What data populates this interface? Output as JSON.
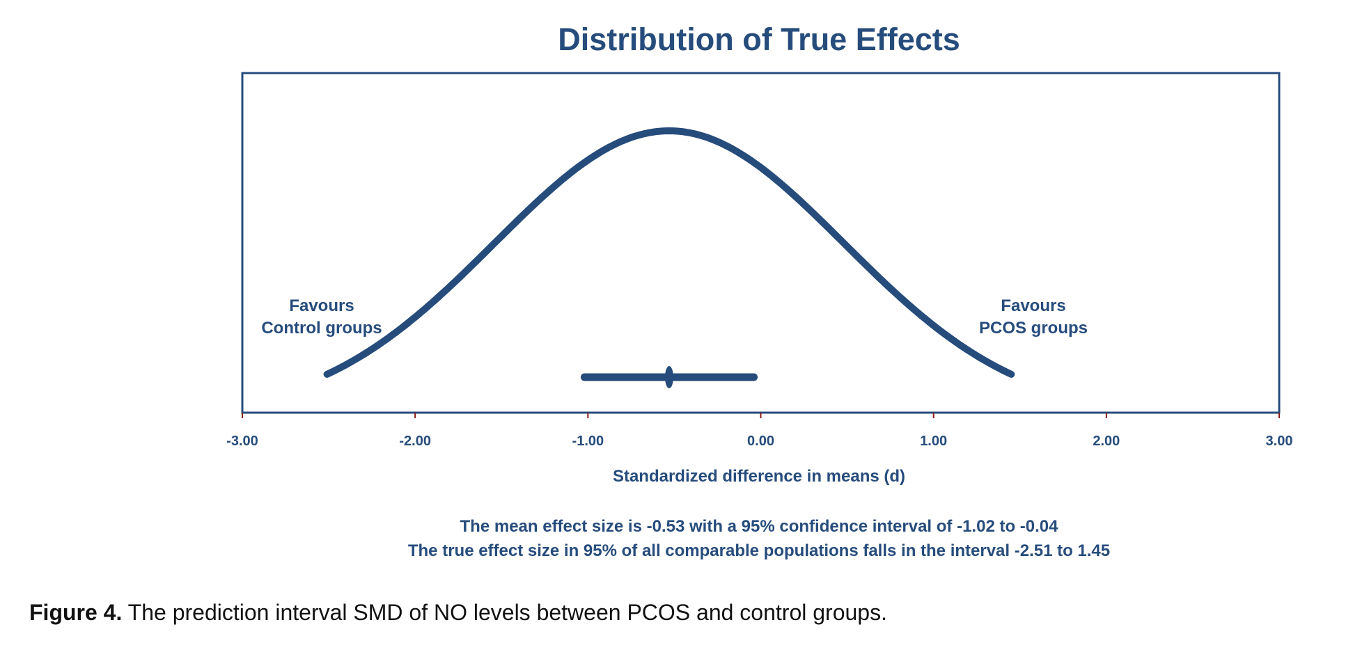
{
  "chart_data": {
    "type": "line",
    "title": "Distribution of True Effects",
    "xlabel": "Standardized difference in means (d)",
    "ylabel": "",
    "xlim": [
      -3.0,
      3.0
    ],
    "x_ticks": [
      "-3.00",
      "-2.00",
      "-1.00",
      "0.00",
      "1.00",
      "2.00",
      "3.00"
    ],
    "x_tick_values": [
      -3,
      -2,
      -1,
      0,
      1,
      2,
      3
    ],
    "grid": false,
    "distribution": {
      "mean": -0.53,
      "pi_lower": -2.51,
      "pi_upper": 1.45
    },
    "confidence_interval": {
      "point": -0.53,
      "lower": -1.02,
      "upper": -0.04
    },
    "annotations": {
      "left": [
        "Favours",
        "Control groups"
      ],
      "right": [
        "Favours",
        "PCOS groups"
      ]
    },
    "footnotes": [
      "The mean effect size is -0.53 with a 95% confidence interval of -1.02 to -0.04",
      "The true effect size in 95% of all comparable populations falls in the interval -2.51 to 1.45"
    ],
    "colors": {
      "primary": "#264c7c",
      "tick_marks": "#8b1a1a"
    }
  },
  "caption": {
    "label": "Figure 4.",
    "text": " The prediction interval SMD of NO levels between PCOS and control groups."
  }
}
